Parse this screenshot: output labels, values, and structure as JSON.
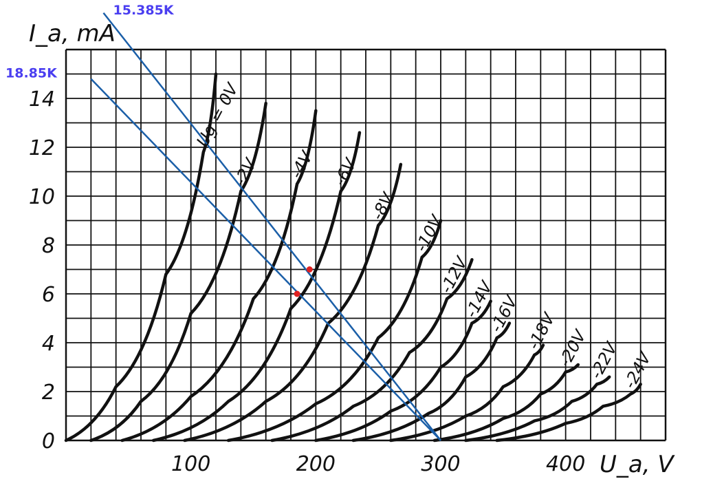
{
  "chart_data": {
    "type": "line",
    "xlabel": "U_a, V",
    "ylabel": "I_a, mA",
    "x_ticks": [
      "100",
      "200",
      "300",
      "400"
    ],
    "y_ticks": [
      "0",
      "2",
      "4",
      "6",
      "8",
      "10",
      "12",
      "14"
    ],
    "xlim": [
      0,
      480
    ],
    "ylim": [
      0,
      16
    ],
    "grid": true,
    "series": [
      {
        "name": "Ug = 0V",
        "x": [
          0,
          40,
          80,
          110,
          120
        ],
        "y": [
          0,
          2.2,
          6.8,
          11.8,
          15
        ]
      },
      {
        "name": "-2V",
        "x": [
          20,
          60,
          100,
          140,
          160
        ],
        "y": [
          0,
          1.6,
          5.2,
          10.2,
          13.8
        ]
      },
      {
        "name": "-4V",
        "x": [
          45,
          100,
          150,
          185,
          200
        ],
        "y": [
          0,
          1.8,
          5.8,
          10.5,
          13.5
        ]
      },
      {
        "name": "-6V",
        "x": [
          70,
          130,
          180,
          220,
          235
        ],
        "y": [
          0,
          1.6,
          5.4,
          10.2,
          12.6
        ]
      },
      {
        "name": "-8V",
        "x": [
          95,
          160,
          210,
          250,
          268
        ],
        "y": [
          0,
          1.6,
          4.8,
          8.8,
          11.3
        ]
      },
      {
        "name": "-10V",
        "x": [
          130,
          200,
          250,
          285,
          300
        ],
        "y": [
          0,
          1.5,
          4.2,
          7.5,
          9
        ]
      },
      {
        "name": "-12V",
        "x": [
          165,
          230,
          275,
          305,
          325
        ],
        "y": [
          0,
          1.4,
          3.6,
          5.8,
          7.4
        ]
      },
      {
        "name": "-14V",
        "x": [
          200,
          260,
          300,
          325,
          340
        ],
        "y": [
          0,
          1.2,
          3,
          4.8,
          5.7
        ]
      },
      {
        "name": "-16V",
        "x": [
          230,
          290,
          320,
          345,
          355
        ],
        "y": [
          0,
          1.1,
          2.6,
          4.2,
          4.8
        ]
      },
      {
        "name": "-18V",
        "x": [
          260,
          320,
          350,
          375,
          382
        ],
        "y": [
          0,
          1.0,
          2.2,
          3.5,
          3.9
        ]
      },
      {
        "name": "-20V",
        "x": [
          295,
          350,
          380,
          400,
          410
        ],
        "y": [
          0,
          0.9,
          1.9,
          2.8,
          3.1
        ]
      },
      {
        "name": "-22V",
        "x": [
          320,
          375,
          405,
          425,
          435
        ],
        "y": [
          0,
          0.8,
          1.6,
          2.3,
          2.6
        ]
      },
      {
        "name": "-24V",
        "x": [
          345,
          400,
          430,
          452,
          460
        ],
        "y": [
          0,
          0.7,
          1.4,
          1.9,
          2.3
        ]
      }
    ],
    "load_lines": [
      {
        "label": "15.385K",
        "x": [
          300,
          30
        ],
        "y": [
          0,
          17.5
        ],
        "color": "#1b5fa8"
      },
      {
        "label": "18.85K",
        "x": [
          300,
          20
        ],
        "y": [
          0,
          14.8
        ],
        "color": "#1b5fa8"
      }
    ],
    "operating_points": [
      {
        "x": 195,
        "y": 7.0,
        "color": "#e02020"
      },
      {
        "x": 185,
        "y": 6.0,
        "color": "#e02020"
      }
    ],
    "load_label_color": "#4a3ef0"
  }
}
